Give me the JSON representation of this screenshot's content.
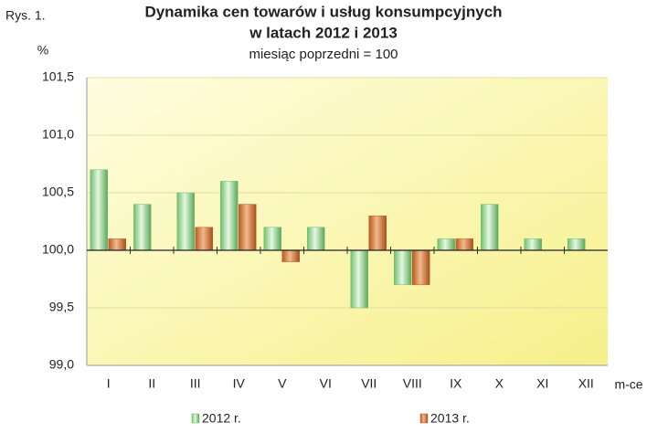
{
  "chart_data": {
    "type": "bar",
    "figure_label": "Rys. 1.",
    "title": "Dynamika cen towarów i usług konsumpcyjnych",
    "title_line2": "w latach 2012 i 2013",
    "subtitle": "miesiąc poprzedni = 100",
    "y_label": "%",
    "x_label": "m-ce",
    "categories": [
      "I",
      "II",
      "III",
      "IV",
      "V",
      "VI",
      "VII",
      "VIII",
      "IX",
      "X",
      "XI",
      "XII"
    ],
    "series": [
      {
        "name": "2012 r.",
        "color": "#6fbf6f",
        "values": [
          100.7,
          100.4,
          100.5,
          100.6,
          100.2,
          100.2,
          99.5,
          99.7,
          100.1,
          100.4,
          100.1,
          100.1
        ]
      },
      {
        "name": "2013 r.",
        "color": "#c0622a",
        "values": [
          100.1,
          null,
          100.2,
          100.4,
          99.9,
          null,
          100.3,
          99.7,
          100.1,
          null,
          null,
          null
        ]
      }
    ],
    "baseline": 100,
    "ylim": [
      99.0,
      101.5
    ],
    "yticks": [
      {
        "value": 99.0,
        "label": "99,0"
      },
      {
        "value": 99.5,
        "label": "99,5"
      },
      {
        "value": 100.0,
        "label": "100,0"
      },
      {
        "value": 100.5,
        "label": "100,5"
      },
      {
        "value": 101.0,
        "label": "101,0"
      },
      {
        "value": 101.5,
        "label": "101,5"
      }
    ],
    "grid": true
  }
}
